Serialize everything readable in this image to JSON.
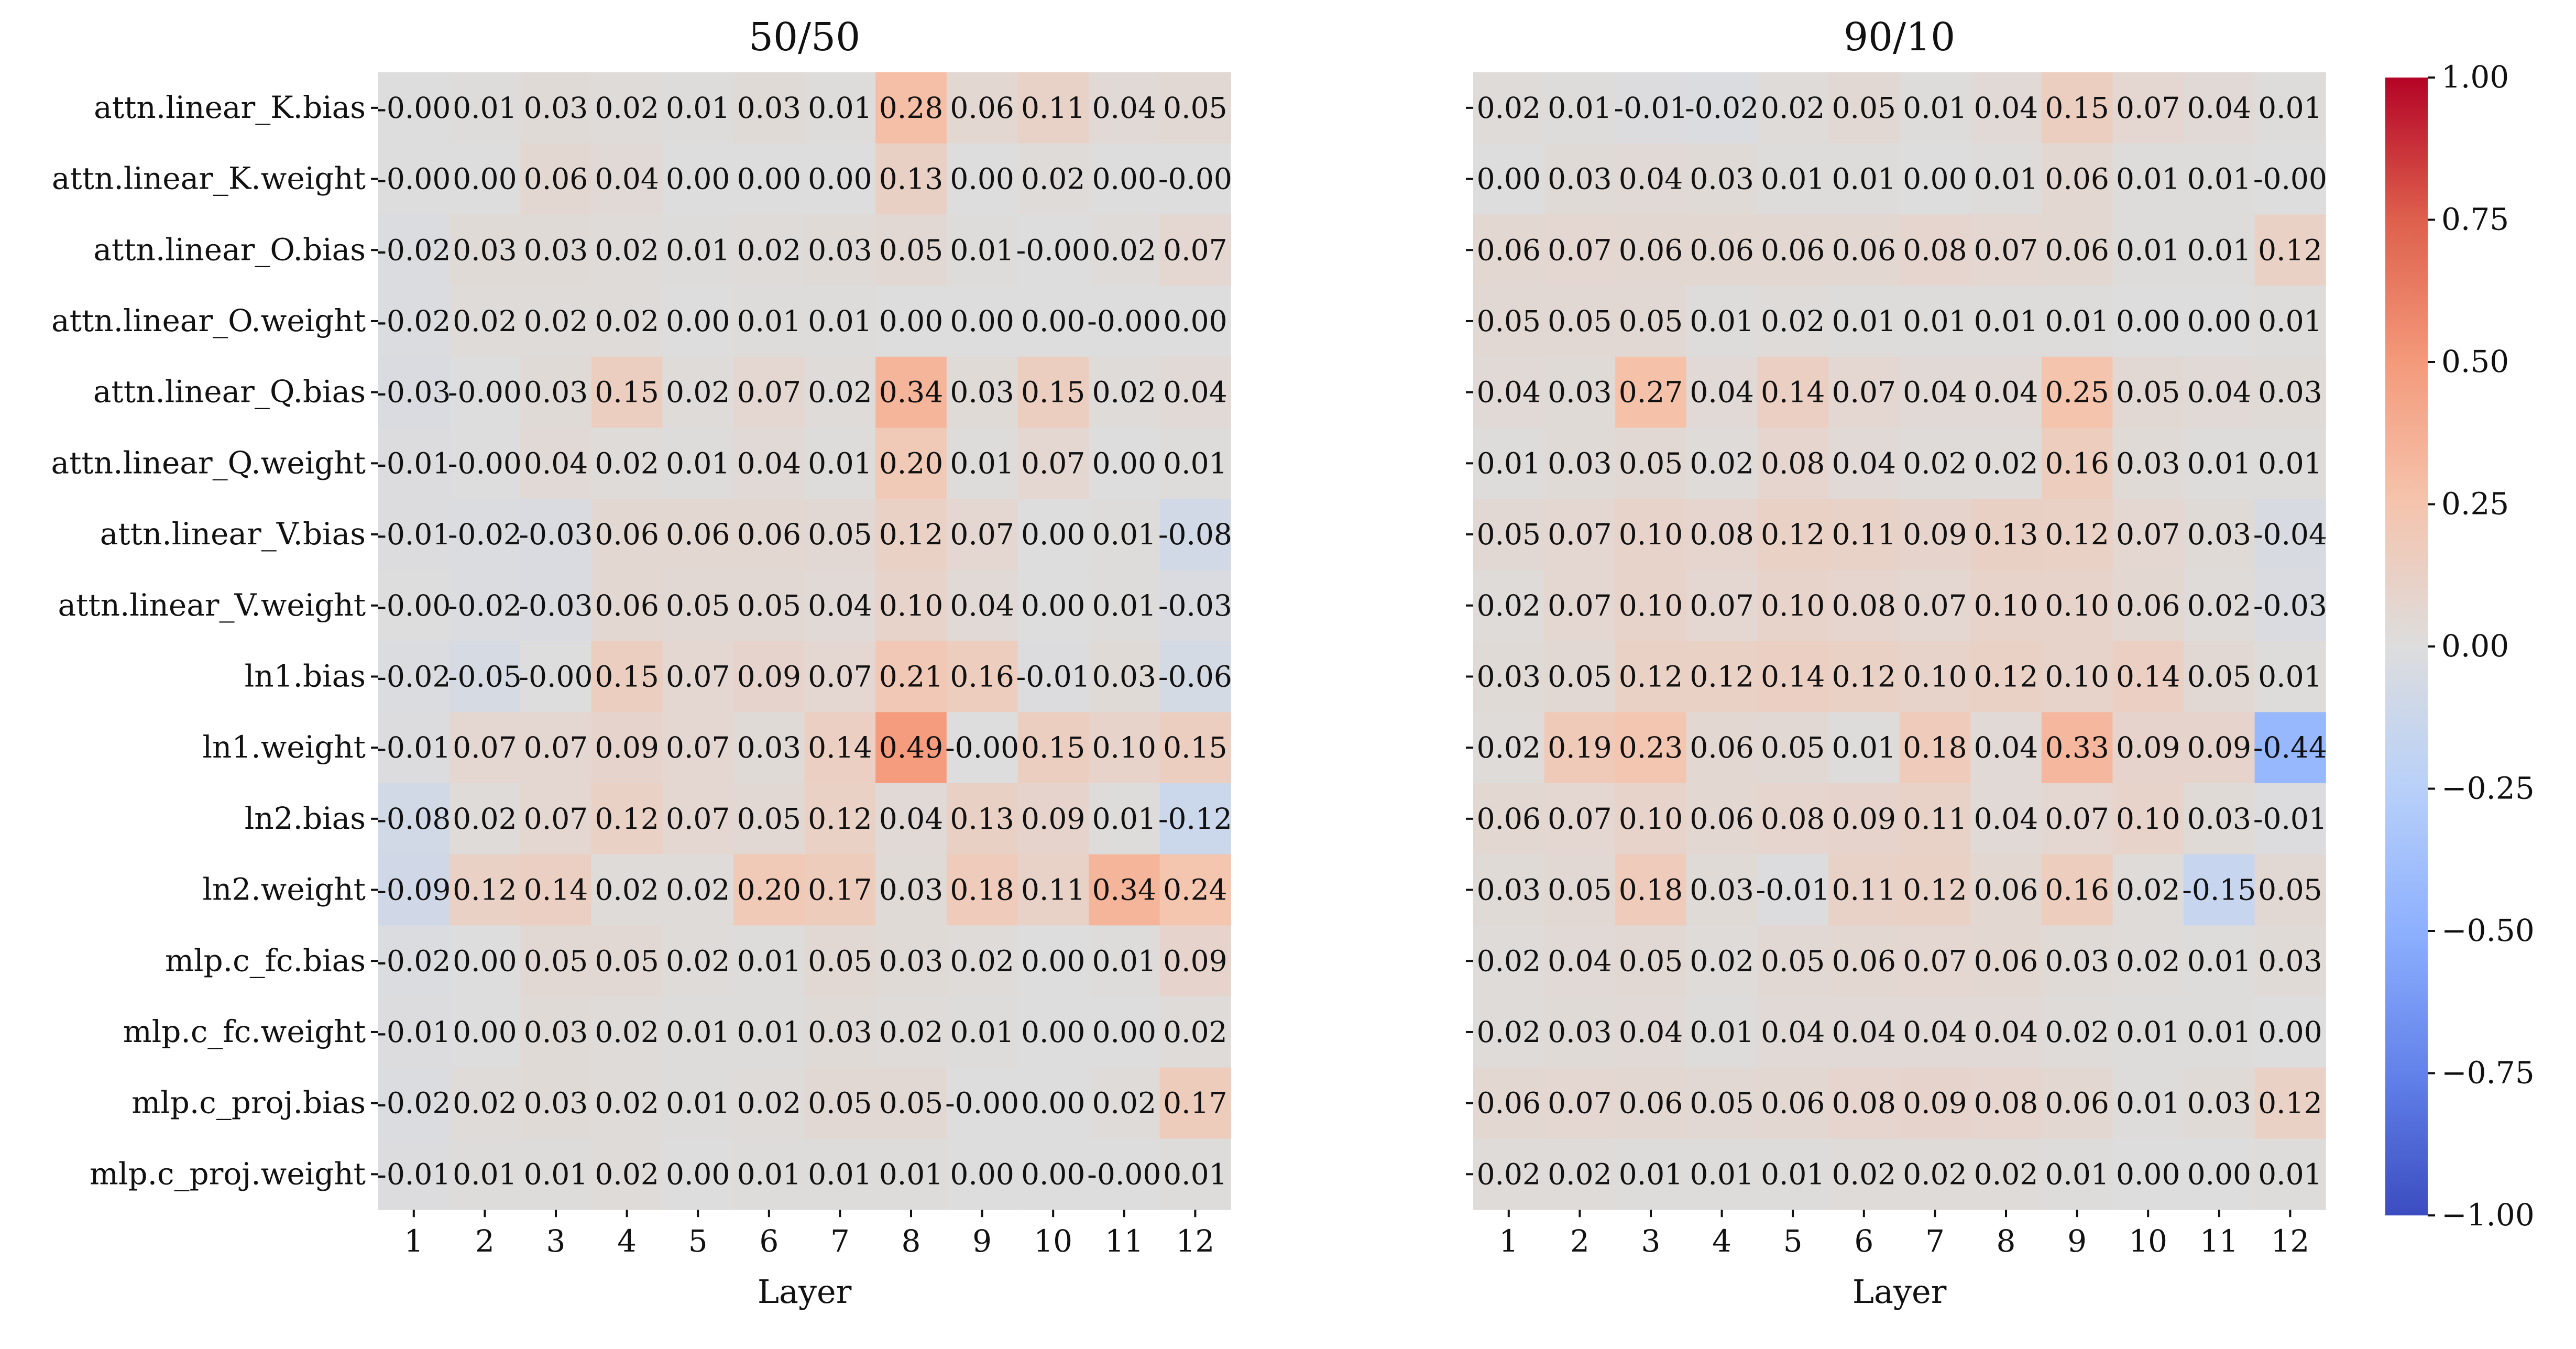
{
  "chart_data": {
    "type": "heatmap",
    "row_labels": [
      "attn.linear_K.bias",
      "attn.linear_K.weight",
      "attn.linear_O.bias",
      "attn.linear_O.weight",
      "attn.linear_Q.bias",
      "attn.linear_Q.weight",
      "attn.linear_V.bias",
      "attn.linear_V.weight",
      "ln1.bias",
      "ln1.weight",
      "ln2.bias",
      "ln2.weight",
      "mlp.c_fc.bias",
      "mlp.c_fc.weight",
      "mlp.c_proj.bias",
      "mlp.c_proj.weight"
    ],
    "col_labels": [
      "1",
      "2",
      "3",
      "4",
      "5",
      "6",
      "7",
      "8",
      "9",
      "10",
      "11",
      "12"
    ],
    "xlabel": "Layer",
    "colorbar": {
      "vmin": -1.0,
      "vmax": 1.0,
      "ticks": [
        1.0,
        0.75,
        0.5,
        0.25,
        0.0,
        -0.25,
        -0.5,
        -0.75,
        -1.0
      ],
      "tick_labels": [
        "1.00",
        "0.75",
        "0.50",
        "0.25",
        "0.00",
        "−0.25",
        "−0.50",
        "−0.75",
        "−1.00"
      ],
      "colormap": "coolwarm"
    },
    "panels": [
      {
        "title": "50/50",
        "values": [
          [
            -0.0,
            0.01,
            0.03,
            0.02,
            0.01,
            0.03,
            0.01,
            0.28,
            0.06,
            0.11,
            0.04,
            0.05
          ],
          [
            -0.0,
            0.0,
            0.06,
            0.04,
            0.0,
            0.0,
            0.0,
            0.13,
            0.0,
            0.02,
            0.0,
            -0.0
          ],
          [
            -0.02,
            0.03,
            0.03,
            0.02,
            0.01,
            0.02,
            0.03,
            0.05,
            0.01,
            -0.0,
            0.02,
            0.07
          ],
          [
            -0.02,
            0.02,
            0.02,
            0.02,
            0.0,
            0.01,
            0.01,
            0.0,
            0.0,
            0.0,
            -0.0,
            0.0
          ],
          [
            -0.03,
            -0.0,
            0.03,
            0.15,
            0.02,
            0.07,
            0.02,
            0.34,
            0.03,
            0.15,
            0.02,
            0.04
          ],
          [
            -0.01,
            -0.0,
            0.04,
            0.02,
            0.01,
            0.04,
            0.01,
            0.2,
            0.01,
            0.07,
            0.0,
            0.01
          ],
          [
            -0.01,
            -0.02,
            -0.03,
            0.06,
            0.06,
            0.06,
            0.05,
            0.12,
            0.07,
            0.0,
            0.01,
            -0.08
          ],
          [
            -0.0,
            -0.02,
            -0.03,
            0.06,
            0.05,
            0.05,
            0.04,
            0.1,
            0.04,
            0.0,
            0.01,
            -0.03
          ],
          [
            -0.02,
            -0.05,
            -0.0,
            0.15,
            0.07,
            0.09,
            0.07,
            0.21,
            0.16,
            -0.01,
            0.03,
            -0.06
          ],
          [
            -0.01,
            0.07,
            0.07,
            0.09,
            0.07,
            0.03,
            0.14,
            0.49,
            -0.0,
            0.15,
            0.1,
            0.15
          ],
          [
            -0.08,
            0.02,
            0.07,
            0.12,
            0.07,
            0.05,
            0.12,
            0.04,
            0.13,
            0.09,
            0.01,
            -0.12
          ],
          [
            -0.09,
            0.12,
            0.14,
            0.02,
            0.02,
            0.2,
            0.17,
            0.03,
            0.18,
            0.11,
            0.34,
            0.24
          ],
          [
            -0.02,
            0.0,
            0.05,
            0.05,
            0.02,
            0.01,
            0.05,
            0.03,
            0.02,
            0.0,
            0.01,
            0.09
          ],
          [
            -0.01,
            0.0,
            0.03,
            0.02,
            0.01,
            0.01,
            0.03,
            0.02,
            0.01,
            0.0,
            0.0,
            0.02
          ],
          [
            -0.02,
            0.02,
            0.03,
            0.02,
            0.01,
            0.02,
            0.05,
            0.05,
            -0.0,
            0.0,
            0.02,
            0.17
          ],
          [
            -0.01,
            0.01,
            0.01,
            0.02,
            0.0,
            0.01,
            0.01,
            0.01,
            0.0,
            0.0,
            -0.0,
            0.01
          ]
        ]
      },
      {
        "title": "90/10",
        "values": [
          [
            0.02,
            0.01,
            -0.01,
            -0.02,
            0.02,
            0.05,
            0.01,
            0.04,
            0.15,
            0.07,
            0.04,
            0.01
          ],
          [
            0.0,
            0.03,
            0.04,
            0.03,
            0.01,
            0.01,
            0.0,
            0.01,
            0.06,
            0.01,
            0.01,
            -0.0
          ],
          [
            0.06,
            0.07,
            0.06,
            0.06,
            0.06,
            0.06,
            0.08,
            0.07,
            0.06,
            0.01,
            0.01,
            0.12
          ],
          [
            0.05,
            0.05,
            0.05,
            0.01,
            0.02,
            0.01,
            0.01,
            0.01,
            0.01,
            0.0,
            0.0,
            0.01
          ],
          [
            0.04,
            0.03,
            0.27,
            0.04,
            0.14,
            0.07,
            0.04,
            0.04,
            0.25,
            0.05,
            0.04,
            0.03
          ],
          [
            0.01,
            0.03,
            0.05,
            0.02,
            0.08,
            0.04,
            0.02,
            0.02,
            0.16,
            0.03,
            0.01,
            0.01
          ],
          [
            0.05,
            0.07,
            0.1,
            0.08,
            0.12,
            0.11,
            0.09,
            0.13,
            0.12,
            0.07,
            0.03,
            -0.04
          ],
          [
            0.02,
            0.07,
            0.1,
            0.07,
            0.1,
            0.08,
            0.07,
            0.1,
            0.1,
            0.06,
            0.02,
            -0.03
          ],
          [
            0.03,
            0.05,
            0.12,
            0.12,
            0.14,
            0.12,
            0.1,
            0.12,
            0.1,
            0.14,
            0.05,
            0.01
          ],
          [
            0.02,
            0.19,
            0.23,
            0.06,
            0.05,
            0.01,
            0.18,
            0.04,
            0.33,
            0.09,
            0.09,
            -0.44
          ],
          [
            0.06,
            0.07,
            0.1,
            0.06,
            0.08,
            0.09,
            0.11,
            0.04,
            0.07,
            0.1,
            0.03,
            -0.01
          ],
          [
            0.03,
            0.05,
            0.18,
            0.03,
            -0.01,
            0.11,
            0.12,
            0.06,
            0.16,
            0.02,
            -0.15,
            0.05
          ],
          [
            0.02,
            0.04,
            0.05,
            0.02,
            0.05,
            0.06,
            0.07,
            0.06,
            0.03,
            0.02,
            0.01,
            0.03
          ],
          [
            0.02,
            0.03,
            0.04,
            0.01,
            0.04,
            0.04,
            0.04,
            0.04,
            0.02,
            0.01,
            0.01,
            0.0
          ],
          [
            0.06,
            0.07,
            0.06,
            0.05,
            0.06,
            0.08,
            0.09,
            0.08,
            0.06,
            0.01,
            0.03,
            0.12
          ],
          [
            0.02,
            0.02,
            0.01,
            0.01,
            0.01,
            0.02,
            0.02,
            0.02,
            0.01,
            0.0,
            0.0,
            0.01
          ]
        ]
      }
    ]
  }
}
